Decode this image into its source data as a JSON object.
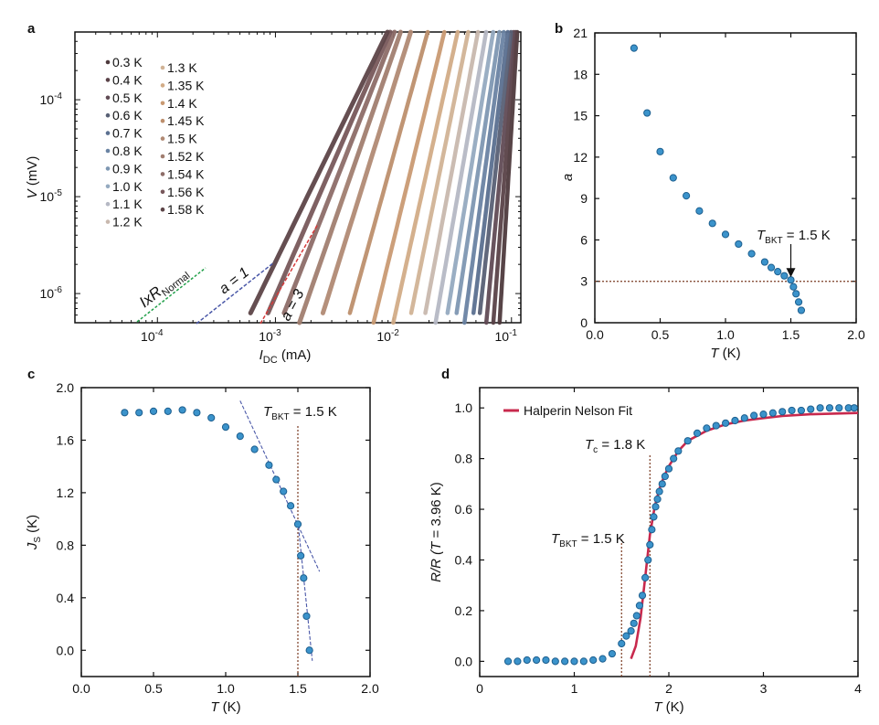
{
  "colors": {
    "marker_fill": "#3b93cb",
    "marker_stroke": "#1d5f8f",
    "fit_line": "#c8294d",
    "guide_dotted": "#7a3b22",
    "blue_dash": "#4a58a8",
    "green_dash": "#22a04a",
    "red_label": "#d63a3a",
    "frame": "#111111"
  },
  "chart_data": [
    {
      "id": "a",
      "panel_label": "a",
      "type": "line",
      "scale": "log-log",
      "xlabel_main": "I",
      "xlabel_sub": "DC",
      "xlabel_unit": " (mA)",
      "ylabel_main": "V",
      "ylabel_unit": " (mV)",
      "xlim": [
        2e-05,
        0.12
      ],
      "ylim": [
        5e-07,
        0.0005
      ],
      "xticks": [
        {
          "value": 0.0001,
          "base": "10",
          "exp": "-4"
        },
        {
          "value": 0.001,
          "base": "10",
          "exp": "-3"
        },
        {
          "value": 0.01,
          "base": "10",
          "exp": "-2"
        },
        {
          "value": 0.1,
          "base": "10",
          "exp": "-1"
        }
      ],
      "yticks": [
        {
          "value": 1e-06,
          "base": "10",
          "exp": "-6"
        },
        {
          "value": 1e-05,
          "base": "10",
          "exp": "-5"
        },
        {
          "value": 0.0001,
          "base": "10",
          "exp": "-4"
        }
      ],
      "series": [
        {
          "name": "0.3 K",
          "color": "#4e3a3d",
          "x_at_top": 0.112,
          "exponent": 20
        },
        {
          "name": "0.4 K",
          "color": "#5a4248",
          "x_at_top": 0.108,
          "exponent": 16
        },
        {
          "name": "0.5 K",
          "color": "#614b55",
          "x_at_top": 0.104,
          "exponent": 13
        },
        {
          "name": "0.6 K",
          "color": "#586075",
          "x_at_top": 0.099,
          "exponent": 11
        },
        {
          "name": "0.7 K",
          "color": "#5b7090",
          "x_at_top": 0.093,
          "exponent": 10
        },
        {
          "name": "0.8 K",
          "color": "#6a83a3",
          "x_at_top": 0.086,
          "exponent": 9
        },
        {
          "name": "0.9 K",
          "color": "#7e97b2",
          "x_at_top": 0.079,
          "exponent": 8
        },
        {
          "name": "1.0 K",
          "color": "#95aac0",
          "x_at_top": 0.07,
          "exponent": 7.5
        },
        {
          "name": "1.1 K",
          "color": "#b5b8c4",
          "x_at_top": 0.061,
          "exponent": 7
        },
        {
          "name": "1.2 K",
          "color": "#c8b8ae",
          "x_at_top": 0.052,
          "exponent": 6.5
        },
        {
          "name": "1.3 K",
          "color": "#d1b396",
          "x_at_top": 0.043,
          "exponent": 6
        },
        {
          "name": "1.35 K",
          "color": "#d2ac87",
          "x_at_top": 0.035,
          "exponent": 5.5
        },
        {
          "name": "1.4 K",
          "color": "#c99a73",
          "x_at_top": 0.027,
          "exponent": 5
        },
        {
          "name": "1.45 K",
          "color": "#bd8f6d",
          "x_at_top": 0.0195,
          "exponent": 4.4
        },
        {
          "name": "1.5 K",
          "color": "#b18a74",
          "x_at_top": 0.014,
          "exponent": 3.9
        },
        {
          "name": "1.52 K",
          "color": "#a17e70",
          "x_at_top": 0.0115,
          "exponent": 3.5
        },
        {
          "name": "1.54 K",
          "color": "#8d6d68",
          "x_at_top": 0.0102,
          "exponent": 3.1
        },
        {
          "name": "1.56 K",
          "color": "#78585b",
          "x_at_top": 0.0094,
          "exponent": 2.8
        },
        {
          "name": "1.58 K",
          "color": "#5d4548",
          "x_at_top": 0.0089,
          "exponent": 2.5
        }
      ],
      "legend_placement": "top-left, two columns",
      "annotations": [
        {
          "text": "IxR",
          "sub": "Normal",
          "color": "#22a04a"
        },
        {
          "text": "a = 1",
          "color": "#4a58a8"
        },
        {
          "text": "a = 3",
          "color": "#d63a3a"
        }
      ]
    },
    {
      "id": "b",
      "panel_label": "b",
      "type": "scatter",
      "xlabel_main": "T",
      "xlabel_unit": " (K)",
      "ylabel_main": "a",
      "xlim": [
        0,
        2
      ],
      "ylim": [
        0,
        21
      ],
      "xticks": [
        "0.0",
        "0.5",
        "1.0",
        "1.5",
        "2.0"
      ],
      "yticks": [
        "0",
        "3",
        "6",
        "9",
        "12",
        "15",
        "18",
        "21"
      ],
      "points": [
        [
          0.3,
          19.9
        ],
        [
          0.4,
          15.2
        ],
        [
          0.5,
          12.4
        ],
        [
          0.6,
          10.5
        ],
        [
          0.7,
          9.2
        ],
        [
          0.8,
          8.1
        ],
        [
          0.9,
          7.2
        ],
        [
          1.0,
          6.4
        ],
        [
          1.1,
          5.7
        ],
        [
          1.2,
          5.0
        ],
        [
          1.3,
          4.4
        ],
        [
          1.35,
          4.0
        ],
        [
          1.4,
          3.7
        ],
        [
          1.45,
          3.4
        ],
        [
          1.5,
          3.1
        ],
        [
          1.52,
          2.6
        ],
        [
          1.54,
          2.1
        ],
        [
          1.56,
          1.5
        ],
        [
          1.58,
          0.9
        ]
      ],
      "hline_y": 3,
      "annotation": {
        "main": "T",
        "sub": "BKT",
        "rest": " = 1.5 K",
        "arrow_to": [
          1.5,
          3.1
        ]
      }
    },
    {
      "id": "c",
      "panel_label": "c",
      "type": "scatter",
      "xlabel_main": "T",
      "xlabel_unit": " (K)",
      "ylabel_main": "J",
      "ylabel_sub": "S",
      "ylabel_unit": " (K)",
      "xlim": [
        0,
        2
      ],
      "ylim": [
        -0.2,
        2
      ],
      "xticks": [
        "0.0",
        "0.5",
        "1.0",
        "1.5",
        "2.0"
      ],
      "yticks": [
        "0.0",
        "0.4",
        "0.8",
        "1.2",
        "1.6",
        "2.0"
      ],
      "points": [
        [
          0.3,
          1.81
        ],
        [
          0.4,
          1.81
        ],
        [
          0.5,
          1.82
        ],
        [
          0.6,
          1.82
        ],
        [
          0.7,
          1.83
        ],
        [
          0.8,
          1.81
        ],
        [
          0.9,
          1.77
        ],
        [
          1.0,
          1.7
        ],
        [
          1.1,
          1.63
        ],
        [
          1.2,
          1.53
        ],
        [
          1.3,
          1.41
        ],
        [
          1.35,
          1.3
        ],
        [
          1.4,
          1.21
        ],
        [
          1.45,
          1.1
        ],
        [
          1.5,
          0.96
        ],
        [
          1.52,
          0.72
        ],
        [
          1.54,
          0.55
        ],
        [
          1.56,
          0.26
        ],
        [
          1.58,
          0.0
        ]
      ],
      "vline_x": 1.5,
      "fit_lines": [
        {
          "from": [
            1.1,
            1.9
          ],
          "to": [
            1.65,
            0.6
          ]
        },
        {
          "from": [
            1.5,
            0.98
          ],
          "to": [
            1.6,
            -0.08
          ]
        }
      ],
      "annotation": {
        "main": "T",
        "sub": "BKT",
        "rest": " = 1.5 K"
      }
    },
    {
      "id": "d",
      "panel_label": "d",
      "type": "scatter",
      "xlabel_main": "T",
      "xlabel_unit": " (K)",
      "ylabel_prefix": "R/R (",
      "ylabel_main": "T",
      "ylabel_unit": " = 3.96 K)",
      "xlim": [
        0,
        4
      ],
      "ylim": [
        -0.06,
        1.08
      ],
      "xticks": [
        "0",
        "1",
        "2",
        "3",
        "4"
      ],
      "yticks": [
        "0.0",
        "0.2",
        "0.4",
        "0.6",
        "0.8",
        "1.0"
      ],
      "points": [
        [
          0.3,
          0.0
        ],
        [
          0.4,
          0.0
        ],
        [
          0.5,
          0.005
        ],
        [
          0.6,
          0.005
        ],
        [
          0.7,
          0.005
        ],
        [
          0.8,
          0.0
        ],
        [
          0.9,
          0.0
        ],
        [
          1.0,
          0.0
        ],
        [
          1.1,
          0.0
        ],
        [
          1.2,
          0.005
        ],
        [
          1.3,
          0.01
        ],
        [
          1.4,
          0.03
        ],
        [
          1.5,
          0.07
        ],
        [
          1.55,
          0.1
        ],
        [
          1.6,
          0.12
        ],
        [
          1.63,
          0.15
        ],
        [
          1.66,
          0.18
        ],
        [
          1.69,
          0.22
        ],
        [
          1.72,
          0.26
        ],
        [
          1.75,
          0.33
        ],
        [
          1.78,
          0.4
        ],
        [
          1.8,
          0.46
        ],
        [
          1.82,
          0.52
        ],
        [
          1.84,
          0.57
        ],
        [
          1.86,
          0.61
        ],
        [
          1.88,
          0.64
        ],
        [
          1.9,
          0.67
        ],
        [
          1.93,
          0.7
        ],
        [
          1.96,
          0.73
        ],
        [
          2.0,
          0.76
        ],
        [
          2.05,
          0.8
        ],
        [
          2.1,
          0.83
        ],
        [
          2.2,
          0.87
        ],
        [
          2.3,
          0.9
        ],
        [
          2.4,
          0.92
        ],
        [
          2.5,
          0.93
        ],
        [
          2.6,
          0.94
        ],
        [
          2.7,
          0.95
        ],
        [
          2.8,
          0.96
        ],
        [
          2.9,
          0.97
        ],
        [
          3.0,
          0.975
        ],
        [
          3.1,
          0.98
        ],
        [
          3.2,
          0.985
        ],
        [
          3.3,
          0.99
        ],
        [
          3.4,
          0.99
        ],
        [
          3.5,
          0.995
        ],
        [
          3.6,
          1.0
        ],
        [
          3.7,
          1.0
        ],
        [
          3.8,
          1.0
        ],
        [
          3.9,
          1.0
        ],
        [
          3.96,
          1.0
        ]
      ],
      "fit": {
        "name": "Halperin Nelson Fit",
        "points": [
          [
            1.6,
            0.01
          ],
          [
            1.65,
            0.06
          ],
          [
            1.7,
            0.17
          ],
          [
            1.75,
            0.33
          ],
          [
            1.8,
            0.5
          ],
          [
            1.85,
            0.61
          ],
          [
            1.9,
            0.68
          ],
          [
            1.95,
            0.73
          ],
          [
            2.0,
            0.77
          ],
          [
            2.1,
            0.83
          ],
          [
            2.2,
            0.87
          ],
          [
            2.4,
            0.91
          ],
          [
            2.6,
            0.935
          ],
          [
            2.8,
            0.95
          ],
          [
            3.0,
            0.96
          ],
          [
            3.2,
            0.968
          ],
          [
            3.5,
            0.975
          ],
          [
            4.0,
            0.98
          ]
        ]
      },
      "vlines_x": [
        1.5,
        1.8
      ],
      "annotations": [
        {
          "main": "T",
          "sub": "BKT",
          "rest": " = 1.5 K"
        },
        {
          "main": "T",
          "sub": "c",
          "rest": " = 1.8 K"
        }
      ],
      "legend_placement": "top-left"
    }
  ]
}
